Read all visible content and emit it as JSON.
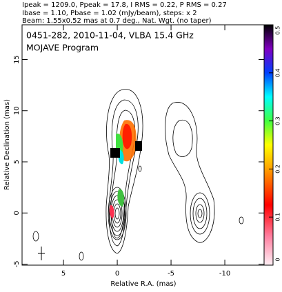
{
  "chart_data": {
    "type": "contour",
    "header_lines": [
      "Ipeak = 1209.0, Ppeak = 17.8, I RMS = 0.22, P RMS = 0.27",
      "Ibase = 1.10, Pbase = 1.02 (mJy/beam), steps: x 2",
      "Beam: 1.55x0.52 mas at 0.7 deg., Nat. Wgt. (no taper)"
    ],
    "annotations": [
      "0451-282, 2010-11-04, VLBA 15.4 GHz",
      "MOJAVE Program"
    ],
    "xlabel": "Relative R.A. (mas)",
    "ylabel": "Relative Declination (mas)",
    "xlim": [
      8.85,
      -13.65
    ],
    "xticks": [
      5,
      0,
      -5,
      -10
    ],
    "ylim": [
      -5.1,
      18.4
    ],
    "yticks": [
      -5,
      0,
      5,
      10,
      15
    ],
    "colorbar_lim": [
      0,
      0.5
    ],
    "colorbar_ticks": [
      0,
      0.1,
      0.2,
      0.3,
      0.4,
      0.5
    ]
  }
}
